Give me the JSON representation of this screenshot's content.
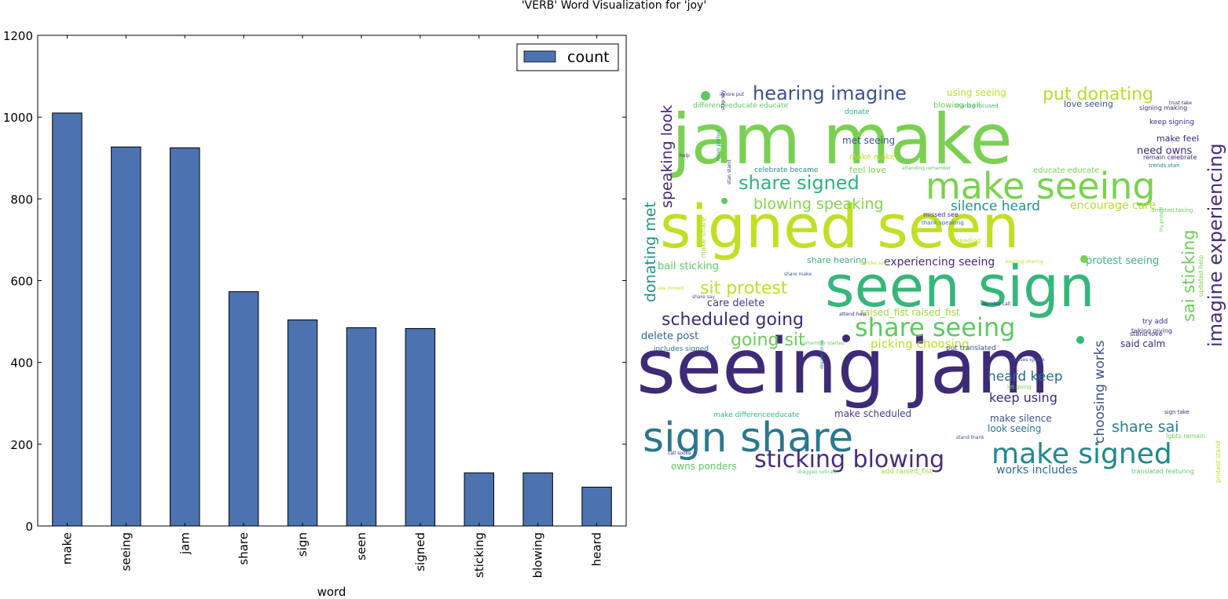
{
  "figure_title": "'VERB' Word Visualization for 'joy'",
  "chart_data": [
    {
      "type": "bar",
      "categories": [
        "make",
        "seeing",
        "jam",
        "share",
        "sign",
        "seen",
        "signed",
        "sticking",
        "blowing",
        "heard"
      ],
      "series": [
        {
          "name": "count",
          "values": [
            1010,
            927,
            925,
            573,
            504,
            485,
            483,
            130,
            130,
            95
          ],
          "color": "#4c72b0"
        }
      ],
      "xlabel": "word",
      "ylabel": "",
      "ylim": [
        0,
        1200
      ],
      "yticks": [
        0,
        200,
        400,
        600,
        800,
        1000,
        1200
      ],
      "grid": false,
      "legend": "top-right"
    },
    {
      "type": "wordcloud",
      "palette": [
        "#440154",
        "#3b528b",
        "#21908c",
        "#27ad81",
        "#5ec962",
        "#addc30",
        "#fde725"
      ]
    }
  ],
  "wordcloud": {
    "words": [
      {
        "text": "jam make",
        "color": "#7ad151"
      },
      {
        "text": "signed seen",
        "color": "#c2df23"
      },
      {
        "text": "seen sign",
        "color": "#35b779"
      },
      {
        "text": "seeing jam",
        "color": "#3e2a77"
      },
      {
        "text": "sign share",
        "color": "#2a788e"
      },
      {
        "text": "make seeing",
        "color": "#7ad151"
      },
      {
        "text": "make signed",
        "color": "#23888e"
      },
      {
        "text": "sticking blowing",
        "color": "#472d7b"
      },
      {
        "text": "share seeing",
        "color": "#5ec962"
      },
      {
        "text": "share signed",
        "color": "#2fb47c"
      },
      {
        "text": "hearing imagine",
        "color": "#3b528b"
      },
      {
        "text": "put donating",
        "color": "#b5de2b"
      },
      {
        "text": "imagine experiencing",
        "color": "#472d7b"
      },
      {
        "text": "scheduled going",
        "color": "#3e2a77"
      },
      {
        "text": "sit protest",
        "color": "#c2df23"
      },
      {
        "text": "going sit",
        "color": "#6ccd5a"
      },
      {
        "text": "blowing speaking",
        "color": "#84d44b"
      },
      {
        "text": "donating met",
        "color": "#21918c"
      },
      {
        "text": "speaking look",
        "color": "#482878"
      },
      {
        "text": "sai sticking",
        "color": "#6ccd5a"
      },
      {
        "text": "choosing works",
        "color": "#3b528b"
      },
      {
        "text": "share sai",
        "color": "#27808e"
      },
      {
        "text": "silence heard",
        "color": "#21918c"
      },
      {
        "text": "heard keep",
        "color": "#31688e"
      },
      {
        "text": "keep using",
        "color": "#3e2a77"
      },
      {
        "text": "encourage care",
        "color": "#b5de2b"
      },
      {
        "text": "experiencing seeing",
        "color": "#482878"
      },
      {
        "text": "protest seeing",
        "color": "#35b779"
      },
      {
        "text": "picking choosing",
        "color": "#bddf26"
      },
      {
        "text": "bail sticking",
        "color": "#5ec962"
      },
      {
        "text": "delete post",
        "color": "#31688e"
      },
      {
        "text": "care delete",
        "color": "#443983"
      },
      {
        "text": "raised_fist raised_fist",
        "color": "#a0da39"
      },
      {
        "text": "said calm",
        "color": "#3e2a77"
      },
      {
        "text": "make silence",
        "color": "#3b528b"
      },
      {
        "text": "look seeing",
        "color": "#2c728e"
      },
      {
        "text": "works includes",
        "color": "#31688e"
      },
      {
        "text": "owns ponders",
        "color": "#5ec962"
      },
      {
        "text": "make scheduled",
        "color": "#433e85"
      },
      {
        "text": "need owns",
        "color": "#3e2a77"
      },
      {
        "text": "met seeing",
        "color": "#3b528b"
      },
      {
        "text": "using seeing",
        "color": "#bddf26"
      },
      {
        "text": "make feel",
        "color": "#3e2a77"
      },
      {
        "text": "feel love",
        "color": "#7ad151"
      },
      {
        "text": "share hearing",
        "color": "#35b779"
      },
      {
        "text": "love seeing",
        "color": "#3b528b"
      },
      {
        "text": "blowing bail",
        "color": "#6ccd5a"
      },
      {
        "text": "make make",
        "color": "#c2df23"
      },
      {
        "text": "keep signing",
        "color": "#3e2a77"
      },
      {
        "text": "educate educate",
        "color": "#7ad151"
      },
      {
        "text": "celebrate became",
        "color": "#21918c"
      },
      {
        "text": "donate",
        "color": "#29af7f"
      },
      {
        "text": "differenceeducate educate",
        "color": "#5ec962"
      },
      {
        "text": "make differenceeducate",
        "color": "#35b779"
      },
      {
        "text": "includes signed",
        "color": "#2a788e"
      },
      {
        "text": "try add",
        "color": "#3e2a77"
      },
      {
        "text": "taking giving",
        "color": "#3e2a77"
      },
      {
        "text": "put translated",
        "color": "#3b528b"
      },
      {
        "text": "make share",
        "color": "#a0da39"
      },
      {
        "text": "add raised_fist",
        "color": "#a0da39"
      },
      {
        "text": "translated featuring",
        "color": "#5ec962"
      },
      {
        "text": "stand love",
        "color": "#3e2a77"
      },
      {
        "text": "lgbts remain",
        "color": "#6ccd5a"
      },
      {
        "text": "updated help",
        "color": "#7ad151"
      },
      {
        "text": "protest stand",
        "color": "#b5de2b"
      },
      {
        "text": "signing making",
        "color": "#3e2a77"
      },
      {
        "text": "remain celebrate",
        "color": "#3e2a77"
      },
      {
        "text": "trends stan",
        "color": "#27808e"
      },
      {
        "text": "arrested taking",
        "color": "#6ccd5a"
      },
      {
        "text": "missed see",
        "color": "#3e2a77"
      },
      {
        "text": "thank speaking",
        "color": "#2a788e"
      },
      {
        "text": "reading",
        "color": "#c2df23"
      },
      {
        "text": "ignore put",
        "color": "#3e2a77"
      },
      {
        "text": "sharing focused",
        "color": "#35b779"
      },
      {
        "text": "help",
        "color": "#3e2a77"
      },
      {
        "text": "move protect",
        "color": "#21918c"
      },
      {
        "text": "stan stand",
        "color": "#3e2a77"
      },
      {
        "text": "keeping sharing",
        "color": "#bddf26"
      },
      {
        "text": "ponder say",
        "color": "#bddf26"
      },
      {
        "text": "share make",
        "color": "#3b528b"
      },
      {
        "text": "attending remember",
        "color": "#5ec962"
      },
      {
        "text": "dream know",
        "color": "#27808e"
      },
      {
        "text": "chooses ignore",
        "color": "#3b528b"
      },
      {
        "text": "let going",
        "color": "#7ad151"
      },
      {
        "text": "sign take",
        "color": "#3e2a77"
      },
      {
        "text": "stand thank",
        "color": "#3b528b"
      },
      {
        "text": "call sooke",
        "color": "#3e2a77"
      },
      {
        "text": "dragged noticed",
        "color": "#5ec962"
      },
      {
        "text": "remember started",
        "color": "#5ec962"
      },
      {
        "text": "attend help",
        "color": "#3e2a77"
      },
      {
        "text": "decided call",
        "color": "#3e2a77"
      },
      {
        "text": "share say",
        "color": "#3b528b"
      },
      {
        "text": "see moved",
        "color": "#c2df23"
      },
      {
        "text": "trust take",
        "color": "#3e2a77"
      },
      {
        "text": "step say",
        "color": "#3e2a77"
      },
      {
        "text": "try protest",
        "color": "#5ec962"
      }
    ]
  }
}
